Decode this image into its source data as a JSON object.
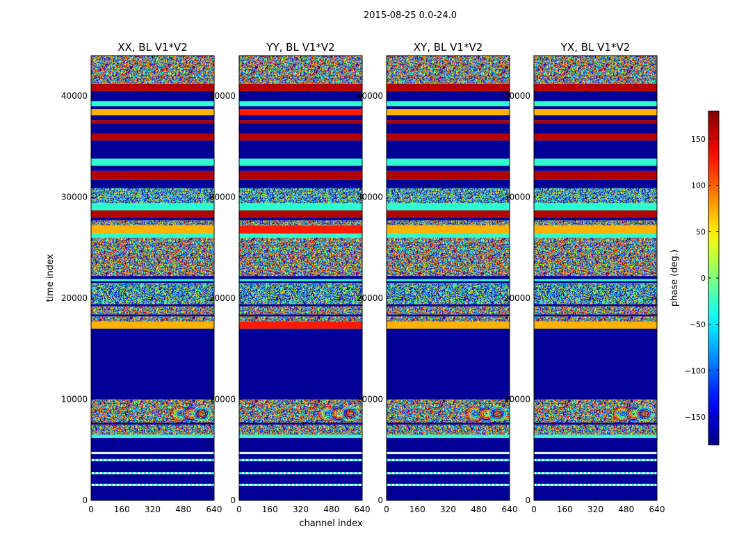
{
  "figure": {
    "suptitle": "2015-08-25 0.0-24.0"
  },
  "chart_data": {
    "type": "heatmap",
    "xlabel": "channel index",
    "ylabel": "time index",
    "xlim": [
      0,
      640
    ],
    "ylim": [
      0,
      44000
    ],
    "xticks": [
      "0",
      "160",
      "320",
      "480",
      "640"
    ],
    "yticks": [
      "0",
      "10000",
      "20000",
      "30000",
      "40000"
    ],
    "colorbar": {
      "label": "phase (deg.)",
      "range": [
        -180,
        180
      ],
      "ticks": [
        "150",
        "100",
        "50",
        "0",
        "−50",
        "−100",
        "−150"
      ],
      "colormap": "jet"
    },
    "panels": [
      {
        "title": "XX, BL V1*V2"
      },
      {
        "title": "YY, BL V1*V2"
      },
      {
        "title": "XY, BL V1*V2"
      },
      {
        "title": "YX, BL V1*V2"
      }
    ],
    "time_bands": [
      {
        "y0": 0,
        "y1": 1450,
        "kind": "blank"
      },
      {
        "y0": 1450,
        "y1": 1650,
        "kind": "dashline"
      },
      {
        "y0": 1650,
        "y1": 2600,
        "kind": "blank"
      },
      {
        "y0": 2600,
        "y1": 2800,
        "kind": "dashline"
      },
      {
        "y0": 2800,
        "y1": 3900,
        "kind": "blank"
      },
      {
        "y0": 3900,
        "y1": 4100,
        "kind": "dashline"
      },
      {
        "y0": 4100,
        "y1": 4600,
        "kind": "blank"
      },
      {
        "y0": 4600,
        "y1": 4800,
        "kind": "line"
      },
      {
        "y0": 4800,
        "y1": 6200,
        "kind": "blank"
      },
      {
        "y0": 6200,
        "y1": 6500,
        "kind": "cyan"
      },
      {
        "y0": 6500,
        "y1": 7500,
        "kind": "noise"
      },
      {
        "y0": 7500,
        "y1": 7700,
        "kind": "blank"
      },
      {
        "y0": 7700,
        "y1": 10000,
        "kind": "noise_rings"
      },
      {
        "y0": 10000,
        "y1": 17000,
        "kind": "blank"
      },
      {
        "y0": 17000,
        "y1": 17700,
        "kind": "warm"
      },
      {
        "y0": 17700,
        "y1": 18200,
        "kind": "noise"
      },
      {
        "y0": 18200,
        "y1": 18400,
        "kind": "blank"
      },
      {
        "y0": 18400,
        "y1": 19200,
        "kind": "noise"
      },
      {
        "y0": 19200,
        "y1": 19400,
        "kind": "blank"
      },
      {
        "y0": 19400,
        "y1": 21500,
        "kind": "noise_green"
      },
      {
        "y0": 21500,
        "y1": 21700,
        "kind": "blank"
      },
      {
        "y0": 21700,
        "y1": 21900,
        "kind": "cyan"
      },
      {
        "y0": 21900,
        "y1": 22200,
        "kind": "blank"
      },
      {
        "y0": 22200,
        "y1": 26000,
        "kind": "noise"
      },
      {
        "y0": 26000,
        "y1": 26400,
        "kind": "cyan"
      },
      {
        "y0": 26400,
        "y1": 27200,
        "kind": "warm"
      },
      {
        "y0": 27200,
        "y1": 27700,
        "kind": "noise"
      },
      {
        "y0": 27700,
        "y1": 28000,
        "kind": "blank"
      },
      {
        "y0": 28000,
        "y1": 28700,
        "kind": "red"
      },
      {
        "y0": 28700,
        "y1": 29400,
        "kind": "cyan"
      },
      {
        "y0": 29400,
        "y1": 30900,
        "kind": "noise_green"
      },
      {
        "y0": 30900,
        "y1": 31700,
        "kind": "blank"
      },
      {
        "y0": 31700,
        "y1": 32600,
        "kind": "red"
      },
      {
        "y0": 32600,
        "y1": 33100,
        "kind": "blank"
      },
      {
        "y0": 33100,
        "y1": 33800,
        "kind": "cyan"
      },
      {
        "y0": 33800,
        "y1": 35600,
        "kind": "blank"
      },
      {
        "y0": 35600,
        "y1": 36300,
        "kind": "red"
      },
      {
        "y0": 36300,
        "y1": 37300,
        "kind": "blank"
      },
      {
        "y0": 37300,
        "y1": 37600,
        "kind": "red"
      },
      {
        "y0": 37600,
        "y1": 38100,
        "kind": "blank"
      },
      {
        "y0": 38100,
        "y1": 38700,
        "kind": "warm"
      },
      {
        "y0": 38700,
        "y1": 39000,
        "kind": "blank"
      },
      {
        "y0": 39000,
        "y1": 39500,
        "kind": "cyan"
      },
      {
        "y0": 39500,
        "y1": 40500,
        "kind": "blank"
      },
      {
        "y0": 40500,
        "y1": 41200,
        "kind": "red"
      },
      {
        "y0": 41200,
        "y1": 44000,
        "kind": "noise"
      }
    ]
  }
}
